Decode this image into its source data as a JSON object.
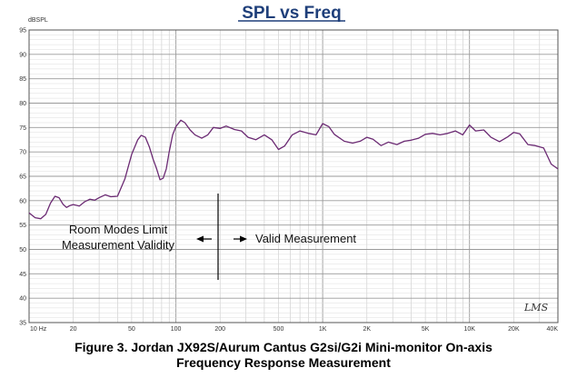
{
  "chart_data": {
    "type": "line",
    "title": "SPL vs Freq",
    "ylabel": "dBSPL",
    "xlabel": "",
    "x_scale": "log",
    "xlim": [
      10,
      40000
    ],
    "ylim": [
      35,
      95
    ],
    "grid": true,
    "x_tick_labels": [
      {
        "value": 10,
        "label": "10 Hz"
      },
      {
        "value": 20,
        "label": "20"
      },
      {
        "value": 50,
        "label": "50"
      },
      {
        "value": 100,
        "label": "100"
      },
      {
        "value": 200,
        "label": "200"
      },
      {
        "value": 500,
        "label": "500"
      },
      {
        "value": 1000,
        "label": "1K"
      },
      {
        "value": 2000,
        "label": "2K"
      },
      {
        "value": 5000,
        "label": "5K"
      },
      {
        "value": 10000,
        "label": "10K"
      },
      {
        "value": 20000,
        "label": "20K"
      },
      {
        "value": 40000,
        "label": "40K"
      }
    ],
    "y_ticks": [
      95,
      90,
      85,
      80,
      75,
      70,
      65,
      60,
      55,
      50,
      45,
      40,
      35
    ],
    "series": [
      {
        "color": "#6b2a73",
        "x": [
          10,
          11,
          12,
          13,
          14,
          15,
          16,
          17,
          18,
          19,
          20,
          22,
          24,
          26,
          28,
          30,
          33,
          36,
          40,
          45,
          50,
          55,
          58,
          62,
          66,
          70,
          74,
          78,
          82,
          86,
          90,
          95,
          100,
          108,
          115,
          125,
          135,
          150,
          165,
          180,
          200,
          220,
          250,
          280,
          310,
          350,
          400,
          450,
          500,
          550,
          620,
          700,
          800,
          900,
          1000,
          1100,
          1200,
          1400,
          1600,
          1800,
          2000,
          2200,
          2500,
          2800,
          3200,
          3600,
          4000,
          4500,
          5000,
          5600,
          6300,
          7100,
          8000,
          9000,
          10000,
          11000,
          12500,
          14000,
          16000,
          18000,
          20000,
          22000,
          25000,
          28000,
          32000,
          36000,
          40000
        ],
        "y": [
          57.5,
          56.5,
          56.3,
          57.2,
          59.5,
          60.9,
          60.6,
          59.3,
          58.6,
          59.0,
          59.2,
          58.9,
          59.8,
          60.3,
          60.1,
          60.6,
          61.2,
          60.8,
          60.9,
          64.5,
          69.5,
          72.5,
          73.4,
          73.0,
          71.0,
          68.5,
          66.5,
          64.3,
          64.6,
          66.5,
          70.0,
          73.5,
          75.2,
          76.5,
          76.0,
          74.5,
          73.5,
          72.8,
          73.5,
          75.0,
          74.8,
          75.3,
          74.6,
          74.3,
          73.0,
          72.5,
          73.5,
          72.5,
          70.5,
          71.2,
          73.5,
          74.3,
          73.8,
          73.5,
          75.8,
          75.2,
          73.6,
          72.2,
          71.8,
          72.2,
          73.0,
          72.6,
          71.3,
          72.0,
          71.5,
          72.2,
          72.4,
          72.8,
          73.6,
          73.8,
          73.5,
          73.8,
          74.3,
          73.5,
          75.5,
          74.3,
          74.5,
          73.0,
          72.1,
          73.0,
          74.0,
          73.7,
          71.5,
          71.3,
          70.8,
          67.5,
          66.5
        ]
      }
    ]
  },
  "annotations": {
    "left_line1": "Room Modes Limit",
    "left_line2": "Measurement Validity",
    "right_label": "Valid Measurement"
  },
  "logo_text": "LMS",
  "caption": {
    "line1": "Figure 3.  Jordan JX92S/Aurum Cantus G2si/G2i Mini-monitor On-axis",
    "line2": "Frequency Response Measurement"
  }
}
